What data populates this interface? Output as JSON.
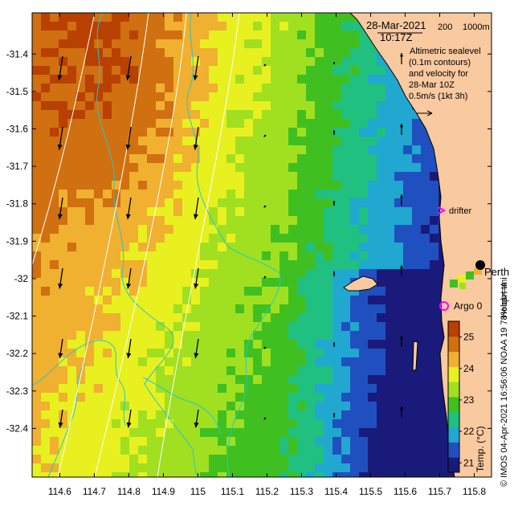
{
  "figure": {
    "date": "28-Mar-2021",
    "time": "10:17Z",
    "depth_labels": [
      "200",
      "1000m"
    ],
    "legend_lines": [
      "Altimetric sealevel",
      "(0.1m contours)",
      "and velocity for",
      "28-Mar 10Z",
      "0.5m/s (1kt 3h)"
    ],
    "drifter_label": "drifter",
    "argo_label": "Argo 0",
    "city_label": "Perth",
    "side_credit": "Hobart tmi",
    "bottom_credit": "© IMOS 04-Apr-2021 16:56:06 NOAA 19 78% ql>=4",
    "colorbar_label": "Temp. (°C)"
  },
  "colors": {
    "land": "#f9c9a0",
    "coast": "#000000",
    "contour": "#ffffff",
    "bathymetry": "#22c8c8",
    "drifter": "#ff00ff",
    "argo": "#ff00ff",
    "arrow": "#000000"
  },
  "chart_data": {
    "type": "heatmap",
    "title": "",
    "xlabel": "",
    "ylabel": "",
    "x_ticks": [
      "114.6",
      "114.7",
      "114.8",
      "114.9",
      "115",
      "115.1",
      "115.2",
      "115.3",
      "115.4",
      "115.5",
      "115.6",
      "115.7",
      "115.8"
    ],
    "y_ticks": [
      "-31.4",
      "-31.5",
      "-31.6",
      "-31.7",
      "-31.8",
      "-31.9",
      "-32",
      "-32.1",
      "-32.2",
      "-32.3",
      "-32.4"
    ],
    "xlim": [
      114.52,
      115.85
    ],
    "ylim": [
      -32.53,
      -31.29
    ],
    "colorbar": {
      "ticks": [
        "25",
        "24",
        "23",
        "22",
        "21"
      ],
      "range": [
        20.7,
        25.5
      ],
      "colors": [
        "#1a1a7a",
        "#2050c0",
        "#20a8d0",
        "#20c080",
        "#40c020",
        "#a0e020",
        "#e8f020",
        "#f0b030",
        "#d07010",
        "#b84000"
      ]
    }
  }
}
